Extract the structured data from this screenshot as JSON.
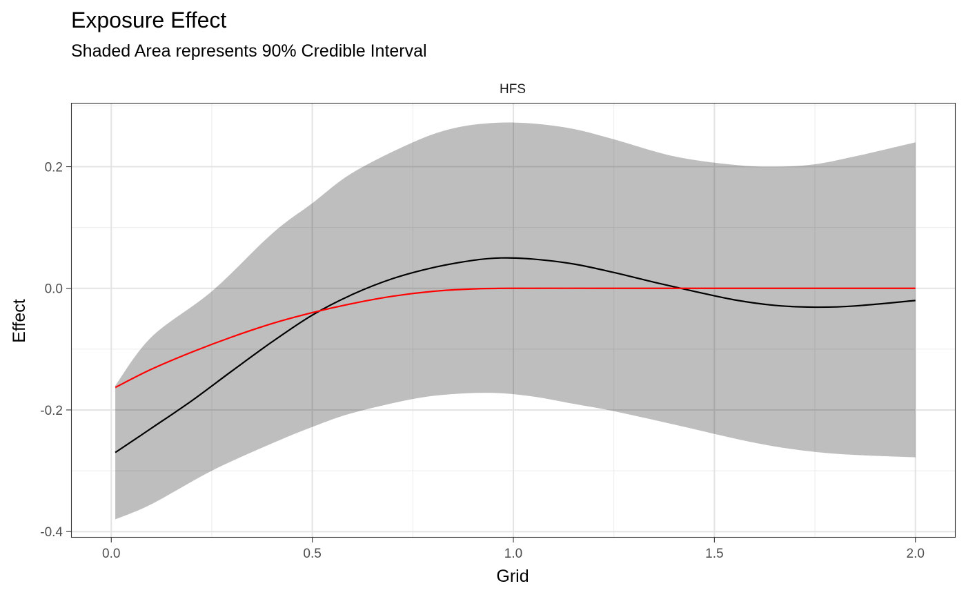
{
  "chart_data": {
    "type": "line",
    "title": "Exposure Effect",
    "subtitle": "Shaded Area represents 90% Credible Interval",
    "facet_label": "HFS",
    "xlabel": "Grid",
    "ylabel": "Effect",
    "xlim": [
      -0.1,
      2.1
    ],
    "ylim": [
      -0.41,
      0.305
    ],
    "x_ticks": [
      0.0,
      0.5,
      1.0,
      1.5,
      2.0
    ],
    "x_tick_labels": [
      "0.0",
      "0.5",
      "1.0",
      "1.5",
      "2.0"
    ],
    "y_ticks": [
      -0.4,
      -0.2,
      0.0,
      0.2
    ],
    "y_tick_labels": [
      "-0.4",
      "-0.2",
      "0.0",
      "0.2"
    ],
    "grid": true,
    "legend": "none",
    "colors": {
      "band": "#bebebe",
      "estimate": "#000000",
      "truth": "#ff0000"
    },
    "band": {
      "x": [
        0.01,
        0.1,
        0.25,
        0.4,
        0.5,
        0.6,
        0.75,
        0.85,
        0.95,
        1.05,
        1.15,
        1.25,
        1.4,
        1.55,
        1.65,
        1.75,
        1.85,
        2.0
      ],
      "lower": [
        -0.38,
        -0.355,
        -0.3,
        -0.255,
        -0.228,
        -0.205,
        -0.182,
        -0.174,
        -0.172,
        -0.178,
        -0.19,
        -0.202,
        -0.224,
        -0.247,
        -0.26,
        -0.269,
        -0.274,
        -0.278
      ],
      "upper": [
        -0.16,
        -0.08,
        -0.005,
        0.09,
        0.14,
        0.19,
        0.24,
        0.263,
        0.272,
        0.271,
        0.262,
        0.245,
        0.217,
        0.203,
        0.2,
        0.204,
        0.217,
        0.24
      ]
    },
    "series": [
      {
        "x": [
          0.01,
          0.1,
          0.2,
          0.3,
          0.4,
          0.5,
          0.6,
          0.7,
          0.8,
          0.9,
          0.97,
          1.05,
          1.15,
          1.25,
          1.35,
          1.45,
          1.55,
          1.65,
          1.75,
          1.85,
          2.0
        ],
        "values": [
          -0.27,
          -0.23,
          -0.185,
          -0.136,
          -0.088,
          -0.044,
          -0.01,
          0.016,
          0.034,
          0.046,
          0.05,
          0.048,
          0.04,
          0.026,
          0.01,
          -0.005,
          -0.019,
          -0.028,
          -0.031,
          -0.029,
          -0.02
        ]
      },
      {
        "x": [
          0.01,
          0.1,
          0.2,
          0.3,
          0.4,
          0.5,
          0.6,
          0.7,
          0.8,
          0.9,
          1.0,
          1.2,
          1.4,
          1.6,
          1.8,
          2.0
        ],
        "values": [
          -0.163,
          -0.133,
          -0.105,
          -0.08,
          -0.058,
          -0.04,
          -0.025,
          -0.013,
          -0.005,
          -0.001,
          0.0,
          0.0,
          0.0,
          0.0,
          0.0,
          0.0
        ]
      }
    ]
  }
}
